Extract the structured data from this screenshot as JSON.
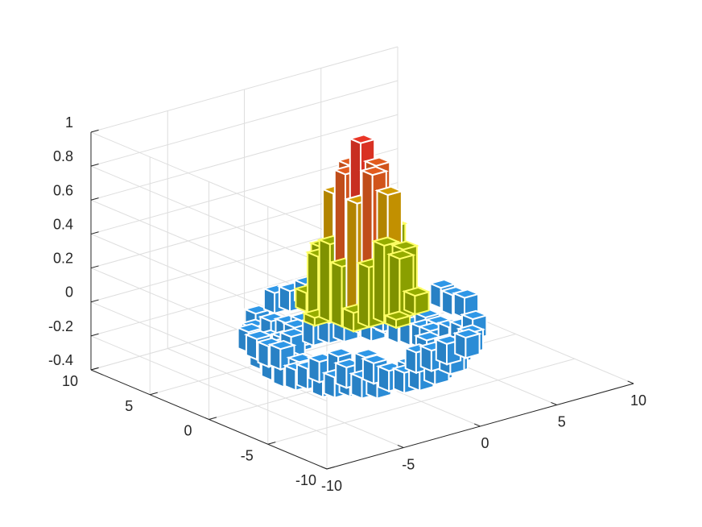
{
  "chart_data": {
    "type": "bar3",
    "title": "",
    "xlabel": "",
    "ylabel": "",
    "zlabel": "",
    "x_range": [
      -10,
      10
    ],
    "y_range": [
      -10,
      10
    ],
    "z_range": [
      -0.4,
      1
    ],
    "x_ticks": [
      "-10",
      "-5",
      "0",
      "5",
      "10"
    ],
    "y_ticks": [
      "-10",
      "-5",
      "0",
      "5",
      "10"
    ],
    "z_ticks": [
      "-0.4",
      "-0.2",
      "0",
      "0.2",
      "0.4",
      "0.6",
      "0.8",
      "1"
    ],
    "grid": true,
    "bar_edge_color": "#ffffff",
    "bar_edge_color_mid": "#ffff66",
    "levels": [
      {
        "max": 0.0,
        "color": "#2b8cd6"
      },
      {
        "max": 0.5,
        "color": "#8a9f00"
      },
      {
        "max": 0.75,
        "color": "#c29000"
      },
      {
        "max": 0.9,
        "color": "#d1541c"
      },
      {
        "max": 1.0,
        "color": "#d93224"
      }
    ],
    "bin_size": 1,
    "function": "sinc(r) = sin(r)/r on a 1-unit grid, r = sqrt(x^2 + y^2), only bars in the central disc and the negative ring are drawn"
  }
}
